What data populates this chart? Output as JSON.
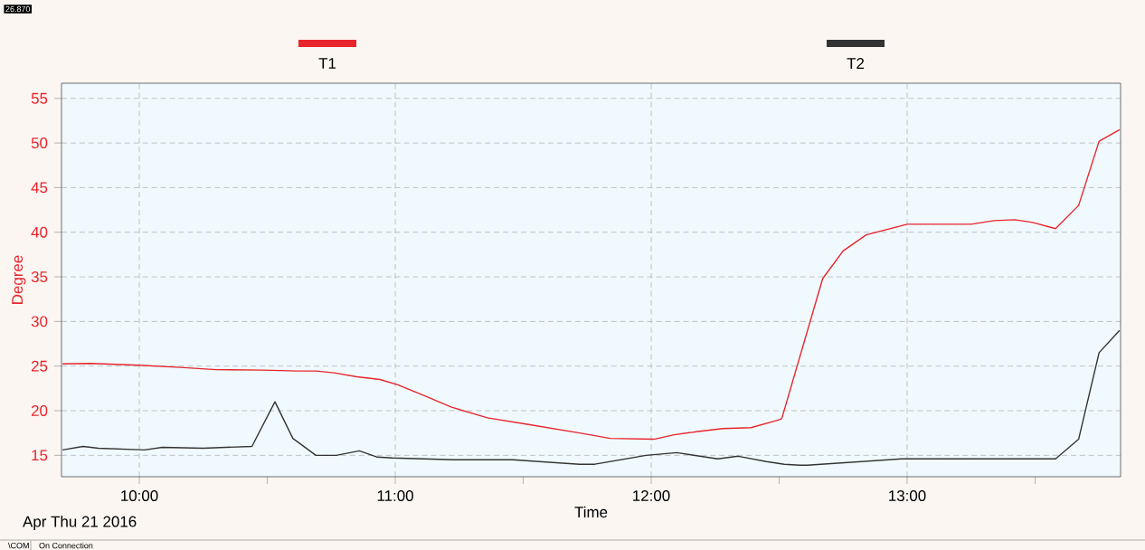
{
  "chart_data": {
    "type": "line",
    "xlabel": "Time",
    "ylabel": "Degree",
    "annotations": [
      "Apr Thu 21 2016",
      "\\COM",
      "On Connection",
      "26.870"
    ],
    "xlim": [
      9.696,
      13.834
    ],
    "ylim": [
      12.6,
      56.7
    ],
    "xticks": [
      {
        "value": 10,
        "label": "10:00"
      },
      {
        "value": 10.5,
        "label": null
      },
      {
        "value": 11,
        "label": "11:00"
      },
      {
        "value": 11.5,
        "label": null
      },
      {
        "value": 12,
        "label": "12:00"
      },
      {
        "value": 12.5,
        "label": null
      },
      {
        "value": 13,
        "label": "13:00"
      },
      {
        "value": 13.5,
        "label": null
      }
    ],
    "yticks": [
      15,
      20,
      25,
      30,
      35,
      40,
      45,
      50,
      55
    ],
    "grid": true,
    "legend": "top",
    "line_style": "solid",
    "marker": "none",
    "series": [
      {
        "name": "T1",
        "color": "#e8242c",
        "x": [
          9.7,
          9.81,
          10.0,
          10.16,
          10.3,
          10.48,
          10.62,
          10.69,
          10.76,
          10.85,
          10.94,
          11.01,
          11.12,
          11.22,
          11.36,
          11.51,
          11.72,
          11.84,
          12.01,
          12.09,
          12.19,
          12.28,
          12.39,
          12.49,
          12.51,
          12.67,
          12.75,
          12.84,
          13.0,
          13.25,
          13.34,
          13.42,
          13.49,
          13.58,
          13.67,
          13.75,
          13.83
        ],
        "values": [
          25.25,
          25.3,
          25.1,
          24.85,
          24.6,
          24.55,
          24.45,
          24.45,
          24.25,
          23.8,
          23.5,
          22.9,
          21.6,
          20.4,
          19.2,
          18.5,
          17.5,
          16.9,
          16.8,
          17.3,
          17.7,
          18.0,
          18.1,
          18.9,
          19.1,
          34.8,
          37.9,
          39.7,
          40.9,
          40.9,
          41.3,
          41.4,
          41.1,
          40.4,
          43.0,
          50.2,
          51.5
        ]
      },
      {
        "name": "T2",
        "color": "#333333",
        "x": [
          9.7,
          9.78,
          9.84,
          10.02,
          10.09,
          10.25,
          10.44,
          10.53,
          10.6,
          10.69,
          10.77,
          10.86,
          10.93,
          10.99,
          11.23,
          11.46,
          11.72,
          11.78,
          11.98,
          12.1,
          12.26,
          12.34,
          12.45,
          12.52,
          12.58,
          12.61,
          12.98,
          13.58,
          13.67,
          13.75,
          13.83
        ],
        "values": [
          15.6,
          16.0,
          15.8,
          15.6,
          15.9,
          15.8,
          16.0,
          21.0,
          16.9,
          15.0,
          15.0,
          15.5,
          14.8,
          14.7,
          14.5,
          14.5,
          14.0,
          14.0,
          15.0,
          15.3,
          14.6,
          14.9,
          14.3,
          14.0,
          13.9,
          13.9,
          14.6,
          14.6,
          16.8,
          26.5,
          29.0
        ]
      }
    ]
  }
}
